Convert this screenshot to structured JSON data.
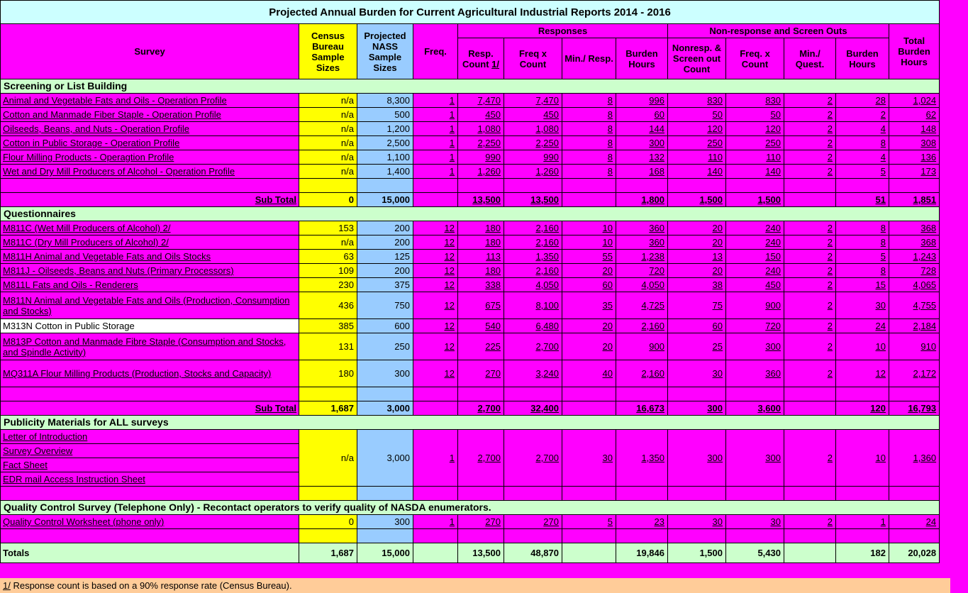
{
  "colors": {
    "background": "#FF00FF",
    "title_bg": "#CCFFFF",
    "census_column_bg": "#FFFF00",
    "nass_column_bg": "#99CCFF",
    "section_header_bg": "#CCFFCC",
    "selected_cell_bg": "#FFFFFF",
    "footnote_bg": "#FFCC99"
  },
  "title": "Projected Annual Burden for Current Agricultural Industrial Reports 2014 - 2016",
  "columns": {
    "survey": "Survey",
    "census": "Census Bureau Sample Sizes",
    "nass": "Projected NASS Sample Sizes",
    "freq": "Freq.",
    "responses_group": "Responses",
    "nonresponse_group": "Non-response and Screen Outs",
    "resp_count": "Resp. Count",
    "resp_count_marker": "1/",
    "freq_x_count": "Freq x Count",
    "min_resp": "Min./ Resp.",
    "burden_hours": "Burden Hours",
    "nonresp_count": "Nonresp. & Screen out Count",
    "nr_freq_x_count": "Freq. x Count",
    "min_quest": "Min./ Quest.",
    "nr_burden_hours": "Burden Hours",
    "total_burden": "Total Burden Hours"
  },
  "body": [
    {
      "t": "sec",
      "text": "Screening or List Building"
    },
    {
      "t": "data",
      "cells": [
        "Animal and Vegetable Fats and Oils - Operation Profile",
        "n/a",
        "8,300",
        "1",
        "7,470",
        "7,470",
        "8",
        "996",
        "830",
        "830",
        "2",
        "28",
        "1,024"
      ]
    },
    {
      "t": "data",
      "cells": [
        "Cotton and Manmade Fiber Staple - Operation Profile",
        "n/a",
        "500",
        "1",
        "450",
        "450",
        "8",
        "60",
        "50",
        "50",
        "2",
        "2",
        "62"
      ]
    },
    {
      "t": "data",
      "cells": [
        "Oilseeds, Beans, and Nuts - Operation Profile",
        "n/a",
        "1,200",
        "1",
        "1,080",
        "1,080",
        "8",
        "144",
        "120",
        "120",
        "2",
        "4",
        "148"
      ]
    },
    {
      "t": "data",
      "cells": [
        "Cotton in Public Storage - Operation Profile",
        "n/a",
        "2,500",
        "1",
        "2,250",
        "2,250",
        "8",
        "300",
        "250",
        "250",
        "2",
        "8",
        "308"
      ]
    },
    {
      "t": "data",
      "cells": [
        "Flour Milling Products - Operagtion Profile",
        "n/a",
        "1,100",
        "1",
        "990",
        "990",
        "8",
        "132",
        "110",
        "110",
        "2",
        "4",
        "136"
      ]
    },
    {
      "t": "data",
      "cells": [
        "Wet and Dry Mill Producers of Alcohol - Operation Profile",
        "n/a",
        "1,400",
        "1",
        "1,260",
        "1,260",
        "8",
        "168",
        "140",
        "140",
        "2",
        "5",
        "173"
      ]
    },
    {
      "t": "blank"
    },
    {
      "t": "subtotal",
      "cells": [
        "Sub Total",
        "0",
        "15,000",
        "",
        "13,500",
        "13,500",
        "",
        "1,800",
        "1,500",
        "1,500",
        "",
        "51",
        "1,851"
      ]
    },
    {
      "t": "sec",
      "text": "Questionnaires"
    },
    {
      "t": "data",
      "cells": [
        "M811C (Wet Mill Producers of Alcohol) 2/",
        "153",
        "200",
        "12",
        "180",
        "2,160",
        "10",
        "360",
        "20",
        "240",
        "2",
        "8",
        "368"
      ]
    },
    {
      "t": "data",
      "cells": [
        "M811C (Dry Mill Producers of Alcohol) 2/",
        "n/a",
        "200",
        "12",
        "180",
        "2,160",
        "10",
        "360",
        "20",
        "240",
        "2",
        "8",
        "368"
      ]
    },
    {
      "t": "data",
      "cells": [
        "M811H Animal and Vegetable Fats and Oils Stocks",
        "63",
        "125",
        "12",
        "113",
        "1,350",
        "55",
        "1,238",
        "13",
        "150",
        "2",
        "5",
        "1,243"
      ]
    },
    {
      "t": "data",
      "cells": [
        "M811J - Oilseeds, Beans and Nuts (Primary Processors)",
        "109",
        "200",
        "12",
        "180",
        "2,160",
        "20",
        "720",
        "20",
        "240",
        "2",
        "8",
        "728"
      ]
    },
    {
      "t": "data",
      "cells": [
        "M811L Fats and Oils - Renderers",
        "230",
        "375",
        "12",
        "338",
        "4,050",
        "60",
        "4,050",
        "38",
        "450",
        "2",
        "15",
        "4,065"
      ]
    },
    {
      "t": "data",
      "tall": true,
      "cells": [
        "M811N Animal and Vegetable Fats and Oils (Production, Consumption and Stocks)",
        "436",
        "750",
        "12",
        "675",
        "8,100",
        "35",
        "4,725",
        "75",
        "900",
        "2",
        "30",
        "4,755"
      ]
    },
    {
      "t": "data",
      "selected": true,
      "cells": [
        "M313N Cotton in Public Storage",
        "385",
        "600",
        "12",
        "540",
        "6,480",
        "20",
        "2,160",
        "60",
        "720",
        "2",
        "24",
        "2,184"
      ]
    },
    {
      "t": "data",
      "tall": true,
      "cells": [
        "M813P Cotton and Manmade Fibre Staple (Consumption and Stocks, and Spindle Activity)",
        "131",
        "250",
        "12",
        "225",
        "2,700",
        "20",
        "900",
        "25",
        "300",
        "2",
        "10",
        "910"
      ]
    },
    {
      "t": "data",
      "tall": true,
      "cells": [
        "MQ311A Flour Milling Products (Production, Stocks and Capacity)",
        "180",
        "300",
        "12",
        "270",
        "3,240",
        "40",
        "2,160",
        "30",
        "360",
        "2",
        "12",
        "2,172"
      ]
    },
    {
      "t": "blank"
    },
    {
      "t": "subtotal",
      "cells": [
        "Sub Total",
        "1,687",
        "3,000",
        "",
        "2,700",
        "32,400",
        "",
        "16,673",
        "300",
        "3,600",
        "",
        "120",
        "16,793"
      ]
    },
    {
      "t": "sec",
      "text": "Publicity Materials for ALL surveys"
    },
    {
      "t": "merged",
      "labels": [
        "Letter of Introduction",
        "Survey Overview",
        "Fact Sheet",
        "EDR mail Access Instruction Sheet"
      ],
      "cells": [
        "n/a",
        "3,000",
        "1",
        "2,700",
        "2,700",
        "30",
        "1,350",
        "300",
        "300",
        "2",
        "10",
        "1,360"
      ]
    },
    {
      "t": "blank"
    },
    {
      "t": "sec",
      "text": "Quality Control Survey (Telephone Only) - Recontact operators to verify quality of NASDA enumerators."
    },
    {
      "t": "data",
      "cells": [
        "Quality Control Worksheet (phone only)",
        "0",
        "300",
        "1",
        "270",
        "270",
        "5",
        "23",
        "30",
        "30",
        "2",
        "1",
        "24"
      ]
    },
    {
      "t": "blank"
    },
    {
      "t": "totals",
      "cells": [
        "Totals",
        "1,687",
        "15,000",
        "",
        "13,500",
        "48,870",
        "",
        "19,846",
        "1,500",
        "5,430",
        "",
        "182",
        "20,028"
      ]
    }
  ],
  "footnote": {
    "marker": "1/",
    "text": " Response count is based on a 90% response rate (Census Bureau)."
  }
}
